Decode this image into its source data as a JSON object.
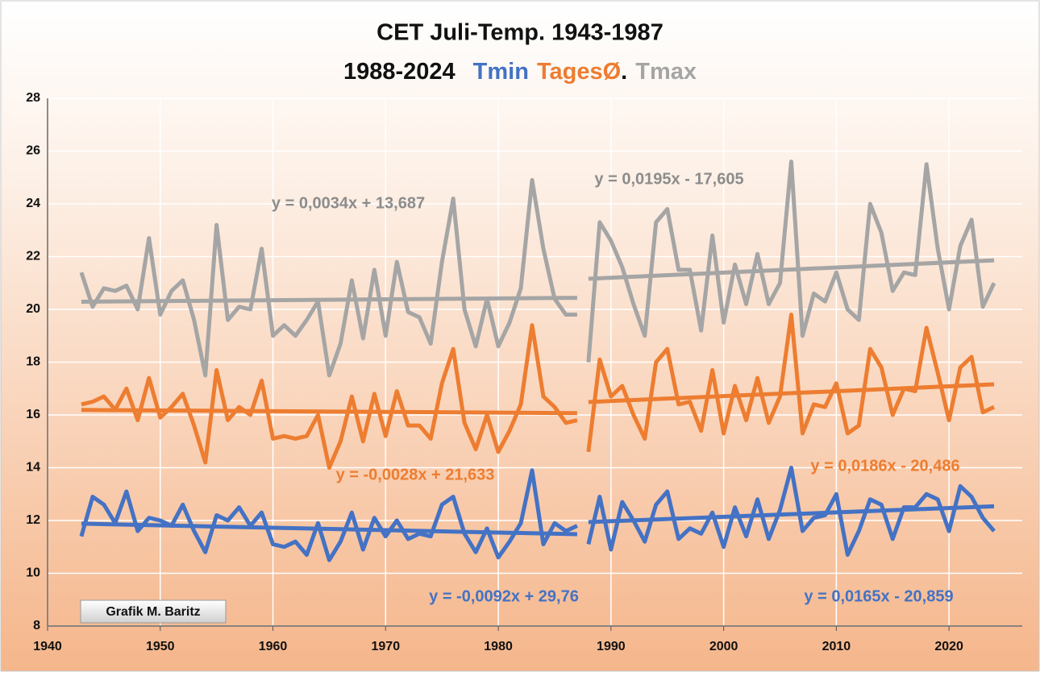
{
  "chart_data": {
    "type": "line",
    "title": "CET Juli-Temp. 1943-1987",
    "subtitle": "1988-2024",
    "title_punctuation": ".",
    "credit": "Grafik M. Baritz",
    "xlim": [
      1940,
      2026.5
    ],
    "xticks": [
      1940,
      1950,
      1960,
      1970,
      1980,
      1990,
      2000,
      2010,
      2020
    ],
    "ylim": [
      8,
      28
    ],
    "yticks": [
      8,
      10,
      12,
      14,
      16,
      18,
      20,
      22,
      24,
      26,
      28
    ],
    "grid": true,
    "break_after": 1987,
    "x": [
      1943,
      1944,
      1945,
      1946,
      1947,
      1948,
      1949,
      1950,
      1951,
      1952,
      1953,
      1954,
      1955,
      1956,
      1957,
      1958,
      1959,
      1960,
      1961,
      1962,
      1963,
      1964,
      1965,
      1966,
      1967,
      1968,
      1969,
      1970,
      1971,
      1972,
      1973,
      1974,
      1975,
      1976,
      1977,
      1978,
      1979,
      1980,
      1981,
      1982,
      1983,
      1984,
      1985,
      1986,
      1987,
      1988,
      1989,
      1990,
      1991,
      1992,
      1993,
      1994,
      1995,
      1996,
      1997,
      1998,
      1999,
      2000,
      2001,
      2002,
      2003,
      2004,
      2005,
      2006,
      2007,
      2008,
      2009,
      2010,
      2011,
      2012,
      2013,
      2014,
      2015,
      2016,
      2017,
      2018,
      2019,
      2020,
      2021,
      2022,
      2023,
      2024
    ],
    "series": [
      {
        "name": "Tmin",
        "color": "#4472c4",
        "values": [
          11.4,
          12.9,
          12.6,
          11.9,
          13.1,
          11.6,
          12.1,
          12.0,
          11.8,
          12.6,
          11.6,
          10.8,
          12.2,
          12.0,
          12.5,
          11.8,
          12.3,
          11.1,
          11.0,
          11.2,
          10.7,
          11.9,
          10.5,
          11.2,
          12.3,
          10.9,
          12.1,
          11.4,
          12.0,
          11.3,
          11.5,
          11.4,
          12.6,
          12.9,
          11.5,
          10.8,
          11.7,
          10.6,
          11.2,
          11.9,
          13.9,
          11.1,
          11.9,
          11.6,
          11.8,
          11.1,
          12.9,
          10.9,
          12.7,
          12.0,
          11.2,
          12.6,
          13.1,
          11.3,
          11.7,
          11.5,
          12.3,
          11.0,
          12.5,
          11.4,
          12.8,
          11.3,
          12.4,
          14.0,
          11.6,
          12.1,
          12.2,
          13.0,
          10.7,
          11.6,
          12.8,
          12.6,
          11.3,
          12.5,
          12.5,
          13.0,
          12.8,
          11.6,
          13.3,
          12.9,
          12.1,
          11.6
        ]
      },
      {
        "name": "TagesØ",
        "color": "#ed7d31",
        "values": [
          16.4,
          16.5,
          16.7,
          16.2,
          17.0,
          15.8,
          17.4,
          15.9,
          16.3,
          16.8,
          15.6,
          14.2,
          17.7,
          15.8,
          16.3,
          16.0,
          17.3,
          15.1,
          15.2,
          15.1,
          15.2,
          16.0,
          14.0,
          15.0,
          16.7,
          15.0,
          16.8,
          15.2,
          16.9,
          15.6,
          15.6,
          15.1,
          17.2,
          18.5,
          15.7,
          14.7,
          16.0,
          14.6,
          15.4,
          16.4,
          19.4,
          16.7,
          16.3,
          15.7,
          15.8,
          14.6,
          18.1,
          16.7,
          17.1,
          16.0,
          15.1,
          18.0,
          18.5,
          16.4,
          16.5,
          15.4,
          17.7,
          15.3,
          17.1,
          15.8,
          17.4,
          15.7,
          16.7,
          19.8,
          15.3,
          16.4,
          16.3,
          17.2,
          15.3,
          15.6,
          18.5,
          17.8,
          16.0,
          17.0,
          16.9,
          19.3,
          17.6,
          15.8,
          17.8,
          18.2,
          16.1,
          16.3
        ]
      },
      {
        "name": "Tmax",
        "color": "#a5a5a5",
        "values": [
          21.4,
          20.1,
          20.8,
          20.7,
          20.9,
          20.0,
          22.7,
          19.8,
          20.7,
          21.1,
          19.6,
          17.5,
          23.2,
          19.6,
          20.1,
          20.0,
          22.3,
          19.0,
          19.4,
          19.0,
          19.6,
          20.3,
          17.5,
          18.7,
          21.1,
          18.9,
          21.5,
          19.0,
          21.8,
          19.9,
          19.7,
          18.7,
          21.8,
          24.2,
          20.0,
          18.6,
          20.4,
          18.6,
          19.5,
          20.8,
          24.9,
          22.3,
          20.4,
          19.8,
          19.8,
          18.0,
          23.3,
          22.6,
          21.6,
          20.2,
          19.0,
          23.3,
          23.8,
          21.5,
          21.5,
          19.2,
          22.8,
          19.5,
          21.7,
          20.2,
          22.1,
          20.2,
          21.0,
          25.6,
          19.0,
          20.6,
          20.3,
          21.4,
          20.0,
          19.6,
          24.0,
          22.9,
          20.7,
          21.4,
          21.3,
          25.5,
          22.3,
          20.0,
          22.4,
          23.4,
          20.1,
          21.0
        ]
      }
    ],
    "trendlines": [
      {
        "label": "y = -0,0092x + 29,76",
        "color": "#4472c4",
        "x": [
          1943,
          1987
        ],
        "values": [
          11.88,
          11.48
        ]
      },
      {
        "label": "y = 0,0165x - 20,859",
        "color": "#4472c4",
        "x": [
          1988,
          2024
        ],
        "values": [
          11.94,
          12.54
        ]
      },
      {
        "label": "y = -0,0028x + 21,633",
        "color": "#ed7d31",
        "x": [
          1943,
          1987
        ],
        "values": [
          16.19,
          16.07
        ]
      },
      {
        "label": "y = 0,0186x - 20,486",
        "color": "#ed7d31",
        "x": [
          1988,
          2024
        ],
        "values": [
          16.49,
          17.16
        ]
      },
      {
        "label": "y = 0,0034x + 13,687",
        "color": "#a5a5a5",
        "x": [
          1943,
          1987
        ],
        "values": [
          20.29,
          20.44
        ]
      },
      {
        "label": "y = 0,0195x - 17,605",
        "color": "#a5a5a5",
        "x": [
          1988,
          2024
        ],
        "values": [
          21.16,
          21.86
        ]
      }
    ]
  }
}
